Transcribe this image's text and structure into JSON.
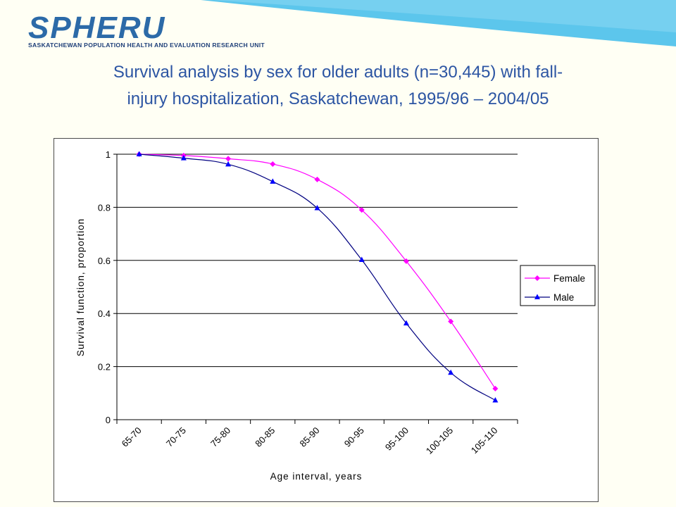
{
  "header": {
    "logo_text": "SPHERU",
    "organization": "SASKATCHEWAN POPULATION HEALTH AND EVALUATION RESEARCH UNIT",
    "title_line1": "Survival analysis by sex for older adults (n=30,445) with fall-",
    "title_line2": "injury hospitalization,  Saskatchewan, 1995/96 – 2004/05"
  },
  "colors": {
    "banner": "#5cc6ec",
    "title": "#2c55a3",
    "female": "#ff00ff",
    "male": "#000080",
    "female_marker": "#ff00ff",
    "male_marker": "#0000ff"
  },
  "chart_data": {
    "type": "line",
    "title": "",
    "xlabel": "Age interval, years",
    "ylabel": "Survival function, proportion",
    "categories": [
      "65-70",
      "70-75",
      "75-80",
      "80-85",
      "85-90",
      "90-95",
      "95-100",
      "100-105",
      "105-110"
    ],
    "yticks": [
      "0",
      "0.2",
      "0.4",
      "0.6",
      "0.8",
      "1"
    ],
    "ylim": [
      0,
      1
    ],
    "grid": "horizontal",
    "legend_position": "right",
    "series": [
      {
        "name": "Female",
        "marker": "diamond",
        "values": [
          1.0,
          0.995,
          0.983,
          0.963,
          0.905,
          0.79,
          0.597,
          0.37,
          0.117
        ]
      },
      {
        "name": "Male",
        "marker": "triangle",
        "values": [
          1.0,
          0.985,
          0.962,
          0.897,
          0.797,
          0.602,
          0.363,
          0.177,
          0.073
        ]
      }
    ]
  }
}
